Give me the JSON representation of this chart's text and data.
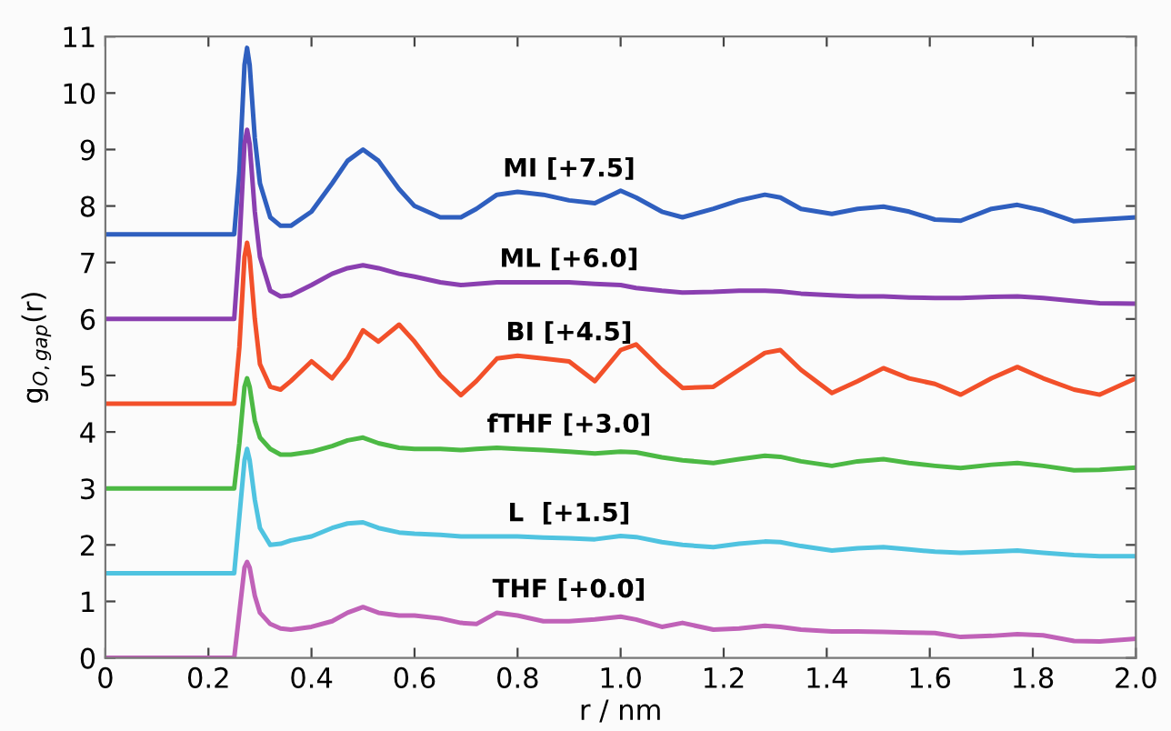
{
  "chart_data": {
    "type": "line",
    "xlabel": "r / nm",
    "ylabel": "g$_{O,gap}$(r)",
    "x": [
      0,
      0.25,
      0.26,
      0.27,
      0.275,
      0.28,
      0.29,
      0.3,
      0.32,
      0.34,
      0.36,
      0.4,
      0.44,
      0.47,
      0.5,
      0.53,
      0.57,
      0.6,
      0.65,
      0.69,
      0.72,
      0.76,
      0.8,
      0.85,
      0.9,
      0.95,
      1.0,
      1.03,
      1.08,
      1.12,
      1.18,
      1.23,
      1.28,
      1.31,
      1.35,
      1.41,
      1.46,
      1.51,
      1.56,
      1.61,
      1.66,
      1.72,
      1.77,
      1.82,
      1.88,
      1.93,
      2.0
    ],
    "series": [
      {
        "name": "MI [+7.5]",
        "color": "#2f5fbf",
        "values": [
          7.5,
          7.5,
          8.6,
          10.5,
          10.8,
          10.5,
          9.2,
          8.4,
          7.8,
          7.65,
          7.65,
          7.9,
          8.4,
          8.8,
          9.0,
          8.8,
          8.3,
          8.0,
          7.8,
          7.8,
          7.95,
          8.2,
          8.25,
          8.2,
          8.1,
          8.05,
          8.27,
          8.15,
          7.9,
          7.8,
          7.95,
          8.1,
          8.2,
          8.15,
          7.95,
          7.86,
          7.95,
          7.99,
          7.9,
          7.76,
          7.74,
          7.95,
          8.02,
          7.92,
          7.73,
          7.76,
          7.8
        ]
      },
      {
        "name": "ML [+6.0]",
        "color": "#8a3fb0",
        "values": [
          6.0,
          6.0,
          7.3,
          9.1,
          9.35,
          9.1,
          7.9,
          7.1,
          6.5,
          6.4,
          6.42,
          6.6,
          6.8,
          6.9,
          6.95,
          6.9,
          6.8,
          6.75,
          6.65,
          6.6,
          6.62,
          6.65,
          6.65,
          6.65,
          6.65,
          6.62,
          6.6,
          6.55,
          6.5,
          6.47,
          6.48,
          6.5,
          6.5,
          6.49,
          6.45,
          6.42,
          6.4,
          6.4,
          6.38,
          6.37,
          6.37,
          6.39,
          6.4,
          6.37,
          6.32,
          6.28,
          6.27
        ]
      },
      {
        "name": "BI [+4.5]",
        "color": "#f2502a",
        "values": [
          4.5,
          4.5,
          5.5,
          7.1,
          7.35,
          7.1,
          6.0,
          5.2,
          4.8,
          4.75,
          4.9,
          5.25,
          4.95,
          5.3,
          5.8,
          5.6,
          5.9,
          5.6,
          5.0,
          4.65,
          4.9,
          5.3,
          5.35,
          5.3,
          5.25,
          4.9,
          5.45,
          5.55,
          5.1,
          4.78,
          4.8,
          5.1,
          5.4,
          5.45,
          5.1,
          4.69,
          4.9,
          5.13,
          4.95,
          4.85,
          4.66,
          4.95,
          5.15,
          4.95,
          4.75,
          4.66,
          4.95
        ]
      },
      {
        "name": "fTHF [+3.0]",
        "color": "#4cb944",
        "values": [
          3.0,
          3.0,
          3.8,
          4.8,
          4.95,
          4.8,
          4.2,
          3.9,
          3.7,
          3.6,
          3.6,
          3.65,
          3.75,
          3.85,
          3.9,
          3.8,
          3.72,
          3.7,
          3.7,
          3.68,
          3.7,
          3.72,
          3.7,
          3.68,
          3.65,
          3.62,
          3.65,
          3.64,
          3.55,
          3.5,
          3.45,
          3.52,
          3.58,
          3.56,
          3.48,
          3.4,
          3.48,
          3.52,
          3.45,
          3.4,
          3.36,
          3.42,
          3.45,
          3.4,
          3.32,
          3.33,
          3.37
        ]
      },
      {
        "name": "L  [+1.5]",
        "color": "#4fc3e0",
        "values": [
          1.5,
          1.5,
          2.5,
          3.5,
          3.7,
          3.5,
          2.8,
          2.3,
          2.0,
          2.02,
          2.08,
          2.15,
          2.3,
          2.38,
          2.4,
          2.3,
          2.22,
          2.2,
          2.18,
          2.15,
          2.15,
          2.15,
          2.15,
          2.13,
          2.12,
          2.1,
          2.16,
          2.14,
          2.05,
          2.0,
          1.96,
          2.02,
          2.06,
          2.05,
          1.98,
          1.9,
          1.94,
          1.96,
          1.92,
          1.88,
          1.86,
          1.88,
          1.9,
          1.86,
          1.82,
          1.8,
          1.8
        ]
      },
      {
        "name": "THF [+0.0]",
        "color": "#c062b8",
        "values": [
          0,
          0,
          0.8,
          1.6,
          1.7,
          1.6,
          1.1,
          0.8,
          0.6,
          0.52,
          0.5,
          0.55,
          0.65,
          0.8,
          0.9,
          0.8,
          0.75,
          0.75,
          0.7,
          0.62,
          0.6,
          0.8,
          0.75,
          0.65,
          0.65,
          0.68,
          0.73,
          0.68,
          0.55,
          0.62,
          0.5,
          0.52,
          0.57,
          0.55,
          0.5,
          0.47,
          0.47,
          0.46,
          0.45,
          0.44,
          0.37,
          0.39,
          0.42,
          0.4,
          0.3,
          0.29,
          0.34
        ]
      }
    ],
    "xlim": [
      0,
      2.0
    ],
    "xticks": [
      0,
      0.2,
      0.4,
      0.6,
      0.8,
      {
        "value": 1.0,
        "label": "1.0"
      },
      1.2,
      1.4,
      1.6,
      1.8,
      {
        "value": 2.0,
        "label": "2.0"
      }
    ],
    "ylim": [
      0,
      11
    ],
    "yticks": [
      0,
      1,
      2,
      3,
      4,
      5,
      6,
      7,
      8,
      9,
      10,
      11
    ],
    "grid": false,
    "legend": false,
    "marker": "none",
    "line_style": "solid"
  }
}
